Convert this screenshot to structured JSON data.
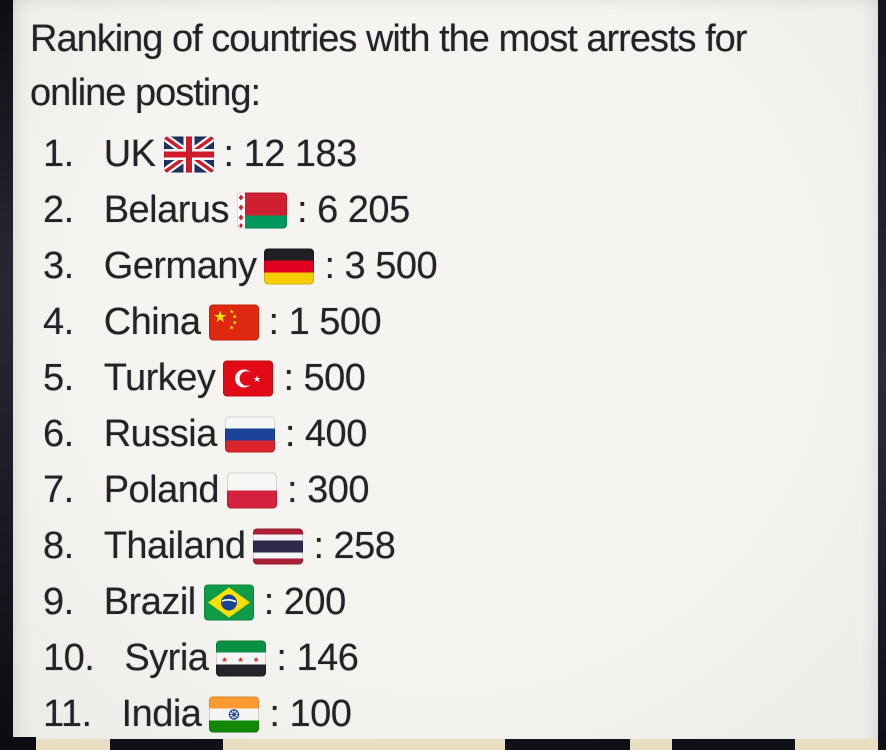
{
  "post": {
    "title_lines": [
      "Ranking of countries with the most arrests for",
      "online posting:"
    ],
    "separator": ":",
    "items": [
      {
        "rank": "1.",
        "country": "UK",
        "flag": "uk",
        "value": "12 183"
      },
      {
        "rank": "2.",
        "country": "Belarus",
        "flag": "belarus",
        "value": "6 205"
      },
      {
        "rank": "3.",
        "country": "Germany",
        "flag": "germany",
        "value": "3 500"
      },
      {
        "rank": "4.",
        "country": "China",
        "flag": "china",
        "value": "1 500"
      },
      {
        "rank": "5.",
        "country": "Turkey",
        "flag": "turkey",
        "value": "500"
      },
      {
        "rank": "6.",
        "country": "Russia",
        "flag": "russia",
        "value": "400"
      },
      {
        "rank": "7.",
        "country": "Poland",
        "flag": "poland",
        "value": "300"
      },
      {
        "rank": "8.",
        "country": "Thailand",
        "flag": "thailand",
        "value": "258"
      },
      {
        "rank": "9.",
        "country": "Brazil",
        "flag": "brazil",
        "value": "200"
      },
      {
        "rank": "10.",
        "country": "Syria",
        "flag": "syria",
        "value": "146"
      },
      {
        "rank": "11.",
        "country": "India",
        "flag": "india",
        "value": "100"
      }
    ]
  },
  "colors": {
    "card_background": "#f2f1ee",
    "text": "#212329",
    "photo_edge": "#12131b",
    "bottom_strip": "#e9ddc2",
    "cutoff_blocks": "#101019"
  }
}
